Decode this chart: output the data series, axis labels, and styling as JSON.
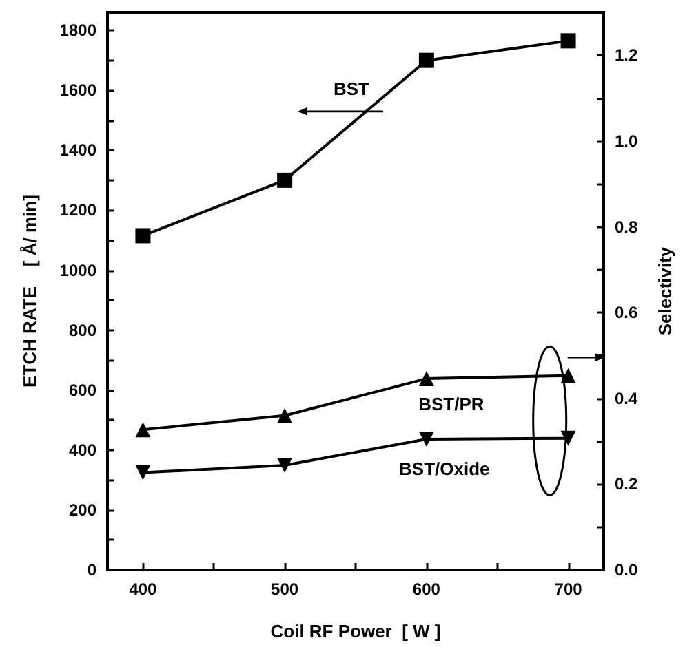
{
  "chart_data": {
    "type": "line",
    "xlabel": "Coil RF Power  [ W ]",
    "ylabel": "ETCH RATE    [ Å/ min]",
    "y2label": "Selectivity",
    "x": [
      400,
      500,
      600,
      700
    ],
    "xlim": [
      375,
      725
    ],
    "xticks": [
      400,
      {
        "value": 450,
        "label": null
      },
      500,
      {
        "value": 550,
        "label": null
      },
      600,
      {
        "value": 650,
        "label": null
      },
      700
    ],
    "ylim": [
      0,
      1860
    ],
    "yticks": [
      0,
      {
        "value": 100,
        "label": null
      },
      200,
      {
        "value": 300,
        "label": null
      },
      400,
      {
        "value": 500,
        "label": null
      },
      600,
      {
        "value": 700,
        "label": null
      },
      800,
      {
        "value": 900,
        "label": null
      },
      1000,
      {
        "value": 1100,
        "label": null
      },
      1200,
      {
        "value": 1300,
        "label": null
      },
      1400,
      {
        "value": 1500,
        "label": null
      },
      1600,
      {
        "value": 1700,
        "label": null
      },
      1800
    ],
    "y2lim": [
      0,
      1.3
    ],
    "y2ticks": [
      {
        "value": 0,
        "label": "0.0"
      },
      {
        "value": 0.1,
        "label": null
      },
      0.2,
      {
        "value": 0.3,
        "label": null
      },
      0.4,
      {
        "value": 0.5,
        "label": null
      },
      0.6,
      {
        "value": 0.7,
        "label": null
      },
      0.8,
      {
        "value": 0.9,
        "label": null
      },
      {
        "value": 1,
        "label": "1.0"
      },
      {
        "value": 1.1,
        "label": null
      },
      1.2
    ],
    "grid": false,
    "legend": false,
    "line_style": "solid",
    "series": [
      {
        "name": "BST",
        "color": "#000000",
        "marker": "square",
        "values": [
          1115,
          1300,
          1700,
          1765
        ]
      },
      {
        "name": "BST/PR",
        "color": "#000000",
        "marker": "triangle",
        "axis": "y2",
        "values": [
          0.327,
          0.36,
          0.446,
          0.453
        ]
      },
      {
        "name": "BST/Oxide",
        "color": "#000000",
        "marker": "triangle-down",
        "axis": "y2",
        "values": [
          0.227,
          0.244,
          0.305,
          0.307
        ]
      }
    ]
  }
}
